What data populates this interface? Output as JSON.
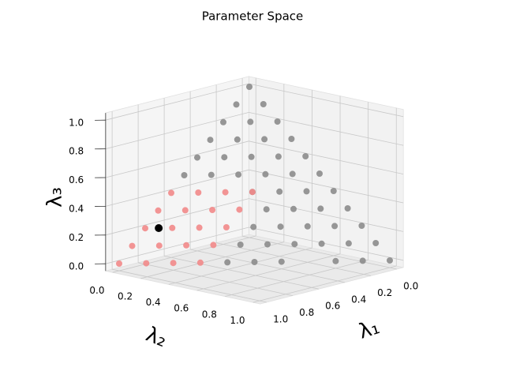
{
  "chart_data": {
    "type": "scatter3d",
    "title": "Parameter Space",
    "xlabel": "λ₁",
    "ylabel": "λ₂",
    "zlabel": "λ₃",
    "xlim": [
      -0.05,
      1.05
    ],
    "ylim": [
      -0.05,
      1.05
    ],
    "zlim": [
      -0.05,
      1.05
    ],
    "xticks": [
      {
        "value": 0,
        "label": "0.0"
      },
      0.2,
      0.4,
      0.6,
      0.8,
      {
        "value": 1,
        "label": "1.0"
      }
    ],
    "yticks": [
      {
        "value": 0,
        "label": "0.0"
      },
      0.2,
      0.4,
      0.6,
      0.8,
      {
        "value": 1,
        "label": "1.0"
      }
    ],
    "zticks": [
      {
        "value": 0,
        "label": "0.0"
      },
      0.2,
      0.4,
      0.6,
      0.8,
      {
        "value": 1,
        "label": "1.0"
      }
    ],
    "grid": true,
    "series": [
      {
        "color": "#8c8c8c",
        "x": [
          0,
          0,
          0,
          0,
          0,
          0,
          0,
          0,
          0,
          0,
          0,
          0.1,
          0.1,
          0.1,
          0.1,
          0.1,
          0.1,
          0.1,
          0.1,
          0.1,
          0.1,
          0.2,
          0.2,
          0.2,
          0.2,
          0.2,
          0.2,
          0.2,
          0.2,
          0.2,
          0.3,
          0.3,
          0.3,
          0.3,
          0.3,
          0.3,
          0.3,
          0.4,
          0.4,
          0.4,
          0.4,
          0.4,
          0.5,
          0.5,
          0.5,
          0.6
        ],
        "y": [
          0,
          0.1,
          0.2,
          0.3,
          0.4,
          0.5,
          0.6,
          0.7,
          0.8,
          0.9,
          1,
          0,
          0.1,
          0.2,
          0.3,
          0.4,
          0.5,
          0.6,
          0.7,
          0.8,
          0.9,
          0,
          0.1,
          0.2,
          0.3,
          0.4,
          0.5,
          0.6,
          0.7,
          0.8,
          0,
          0.1,
          0.2,
          0.3,
          0.4,
          0.5,
          0.6,
          0,
          0.1,
          0.4,
          0.5,
          0.6,
          0,
          0.4,
          0.5,
          0.4
        ],
        "z": [
          1,
          0.9,
          0.8,
          0.7,
          0.6,
          0.5,
          0.4,
          0.3,
          0.2,
          0.1,
          0,
          0.9,
          0.8,
          0.7,
          0.6,
          0.5,
          0.4,
          0.3,
          0.2,
          0.1,
          0,
          0.8,
          0.7,
          0.6,
          0.5,
          0.4,
          0.3,
          0.2,
          0.1,
          0,
          0.7,
          0.6,
          0.5,
          0.4,
          0.3,
          0.2,
          0.1,
          0.6,
          0.5,
          0.2,
          0.1,
          0,
          0.5,
          0.1,
          0,
          0
        ]
      },
      {
        "color": "#f28a8a",
        "x": [
          0.3,
          0.4,
          0.4,
          0.5,
          0.5,
          0.5,
          0.6,
          0.6,
          0.6,
          0.6,
          0.7,
          0.7,
          0.7,
          0.7,
          0.8,
          0.8,
          0.8,
          0.9,
          0.9,
          1
        ],
        "y": [
          0.3,
          0.2,
          0.3,
          0.1,
          0.2,
          0.3,
          0,
          0.1,
          0.2,
          0.3,
          0,
          0.1,
          0.2,
          0.3,
          0,
          0.1,
          0.2,
          0,
          0.1,
          0
        ],
        "z": [
          0.4,
          0.4,
          0.3,
          0.4,
          0.3,
          0.2,
          0.4,
          0.3,
          0.2,
          0.1,
          0.3,
          0.2,
          0.1,
          0,
          0.2,
          0.1,
          0,
          0.1,
          0,
          0
        ]
      },
      {
        "color": "#000000",
        "x": [
          0.75
        ],
        "y": [
          0.05
        ],
        "z": [
          0.2
        ]
      }
    ]
  }
}
